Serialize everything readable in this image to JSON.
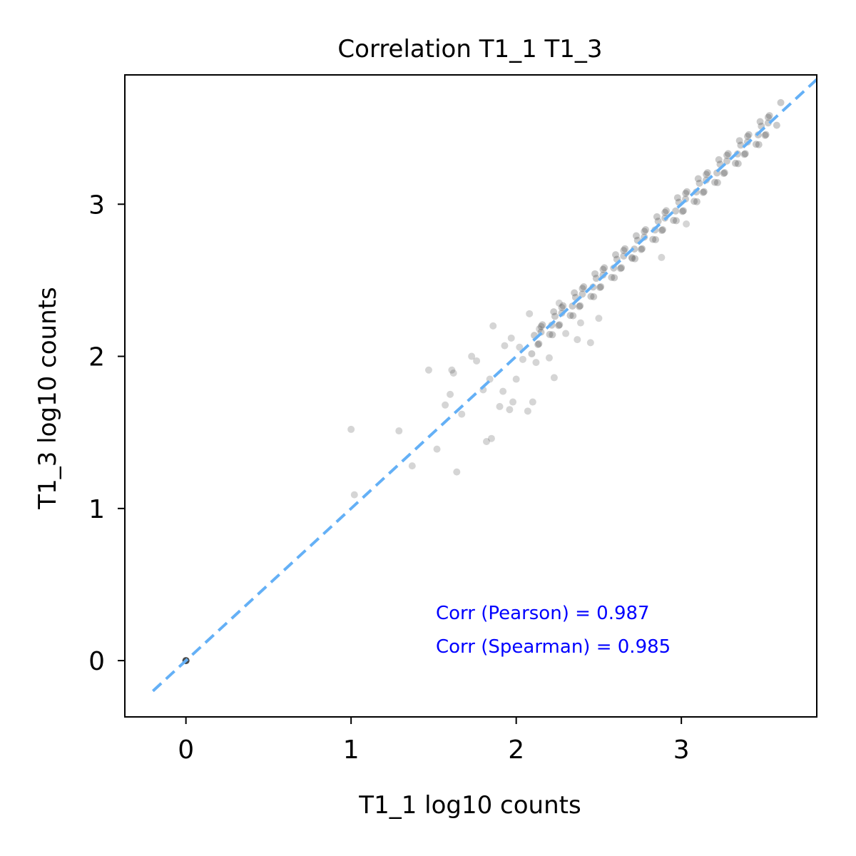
{
  "chart_data": {
    "type": "scatter",
    "title": "Correlation T1_1 T1_3",
    "xlabel": "T1_1 log10 counts",
    "ylabel": "T1_3 log10 counts",
    "xlim": [
      -0.37,
      3.82
    ],
    "ylim": [
      -0.37,
      3.85
    ],
    "xticks": [
      0,
      1,
      2,
      3
    ],
    "yticks": [
      0,
      1,
      2,
      3
    ],
    "xtick_labels": [
      "0",
      "1",
      "2",
      "3"
    ],
    "ytick_labels": [
      "0",
      "1",
      "2",
      "3"
    ],
    "grid": false,
    "legend": "none",
    "point_color": "#404040",
    "reference_line": {
      "style": "dashed",
      "color": "#64b0f6",
      "from": [
        -0.2,
        -0.2
      ],
      "to": [
        3.82,
        3.82
      ]
    },
    "annotations": [
      "Corr (Pearson) = 0.987",
      "Corr (Spearman) = 0.985"
    ],
    "annotation_color": "#0000ff",
    "outlier_points": [
      {
        "x": 0,
        "y": 0
      },
      {
        "x": 1.0,
        "y": 1.52
      },
      {
        "x": 1.02,
        "y": 1.09
      },
      {
        "x": 1.29,
        "y": 1.51
      },
      {
        "x": 1.37,
        "y": 1.28
      },
      {
        "x": 1.47,
        "y": 1.91
      },
      {
        "x": 1.52,
        "y": 1.39
      },
      {
        "x": 1.57,
        "y": 1.68
      },
      {
        "x": 1.6,
        "y": 1.75
      },
      {
        "x": 1.61,
        "y": 1.91
      },
      {
        "x": 1.62,
        "y": 1.89
      },
      {
        "x": 1.64,
        "y": 1.24
      },
      {
        "x": 1.67,
        "y": 1.62
      },
      {
        "x": 1.73,
        "y": 2.0
      },
      {
        "x": 1.76,
        "y": 1.97
      },
      {
        "x": 1.8,
        "y": 1.78
      },
      {
        "x": 1.82,
        "y": 1.44
      },
      {
        "x": 1.85,
        "y": 1.46
      },
      {
        "x": 1.84,
        "y": 1.85
      },
      {
        "x": 1.86,
        "y": 2.2
      },
      {
        "x": 1.9,
        "y": 1.67
      },
      {
        "x": 1.92,
        "y": 1.77
      },
      {
        "x": 1.93,
        "y": 2.07
      },
      {
        "x": 1.96,
        "y": 1.65
      },
      {
        "x": 1.98,
        "y": 1.7
      },
      {
        "x": 1.97,
        "y": 2.12
      },
      {
        "x": 2.0,
        "y": 1.85
      },
      {
        "x": 2.02,
        "y": 2.06
      },
      {
        "x": 2.04,
        "y": 1.98
      },
      {
        "x": 2.07,
        "y": 1.64
      },
      {
        "x": 2.1,
        "y": 1.7
      },
      {
        "x": 2.12,
        "y": 1.96
      },
      {
        "x": 2.08,
        "y": 2.28
      },
      {
        "x": 2.14,
        "y": 2.18
      },
      {
        "x": 2.2,
        "y": 1.99
      },
      {
        "x": 2.23,
        "y": 1.86
      },
      {
        "x": 2.26,
        "y": 2.35
      },
      {
        "x": 2.3,
        "y": 2.15
      },
      {
        "x": 2.37,
        "y": 2.11
      },
      {
        "x": 2.39,
        "y": 2.22
      },
      {
        "x": 2.45,
        "y": 2.09
      },
      {
        "x": 2.5,
        "y": 2.25
      },
      {
        "x": 2.7,
        "y": 2.65
      },
      {
        "x": 2.88,
        "y": 2.65
      },
      {
        "x": 3.03,
        "y": 2.87
      }
    ],
    "band": {
      "description": "dense cloud of points along the identity line",
      "x_range": [
        2.1,
        3.58
      ],
      "x_step": 0.0125,
      "offset_spread": 0.09,
      "scatter_offsets": [
        -0.06,
        0.05,
        -0.02,
        0.07,
        -0.08,
        0.01,
        0.04,
        -0.04,
        0.09,
        -0.01
      ]
    }
  }
}
